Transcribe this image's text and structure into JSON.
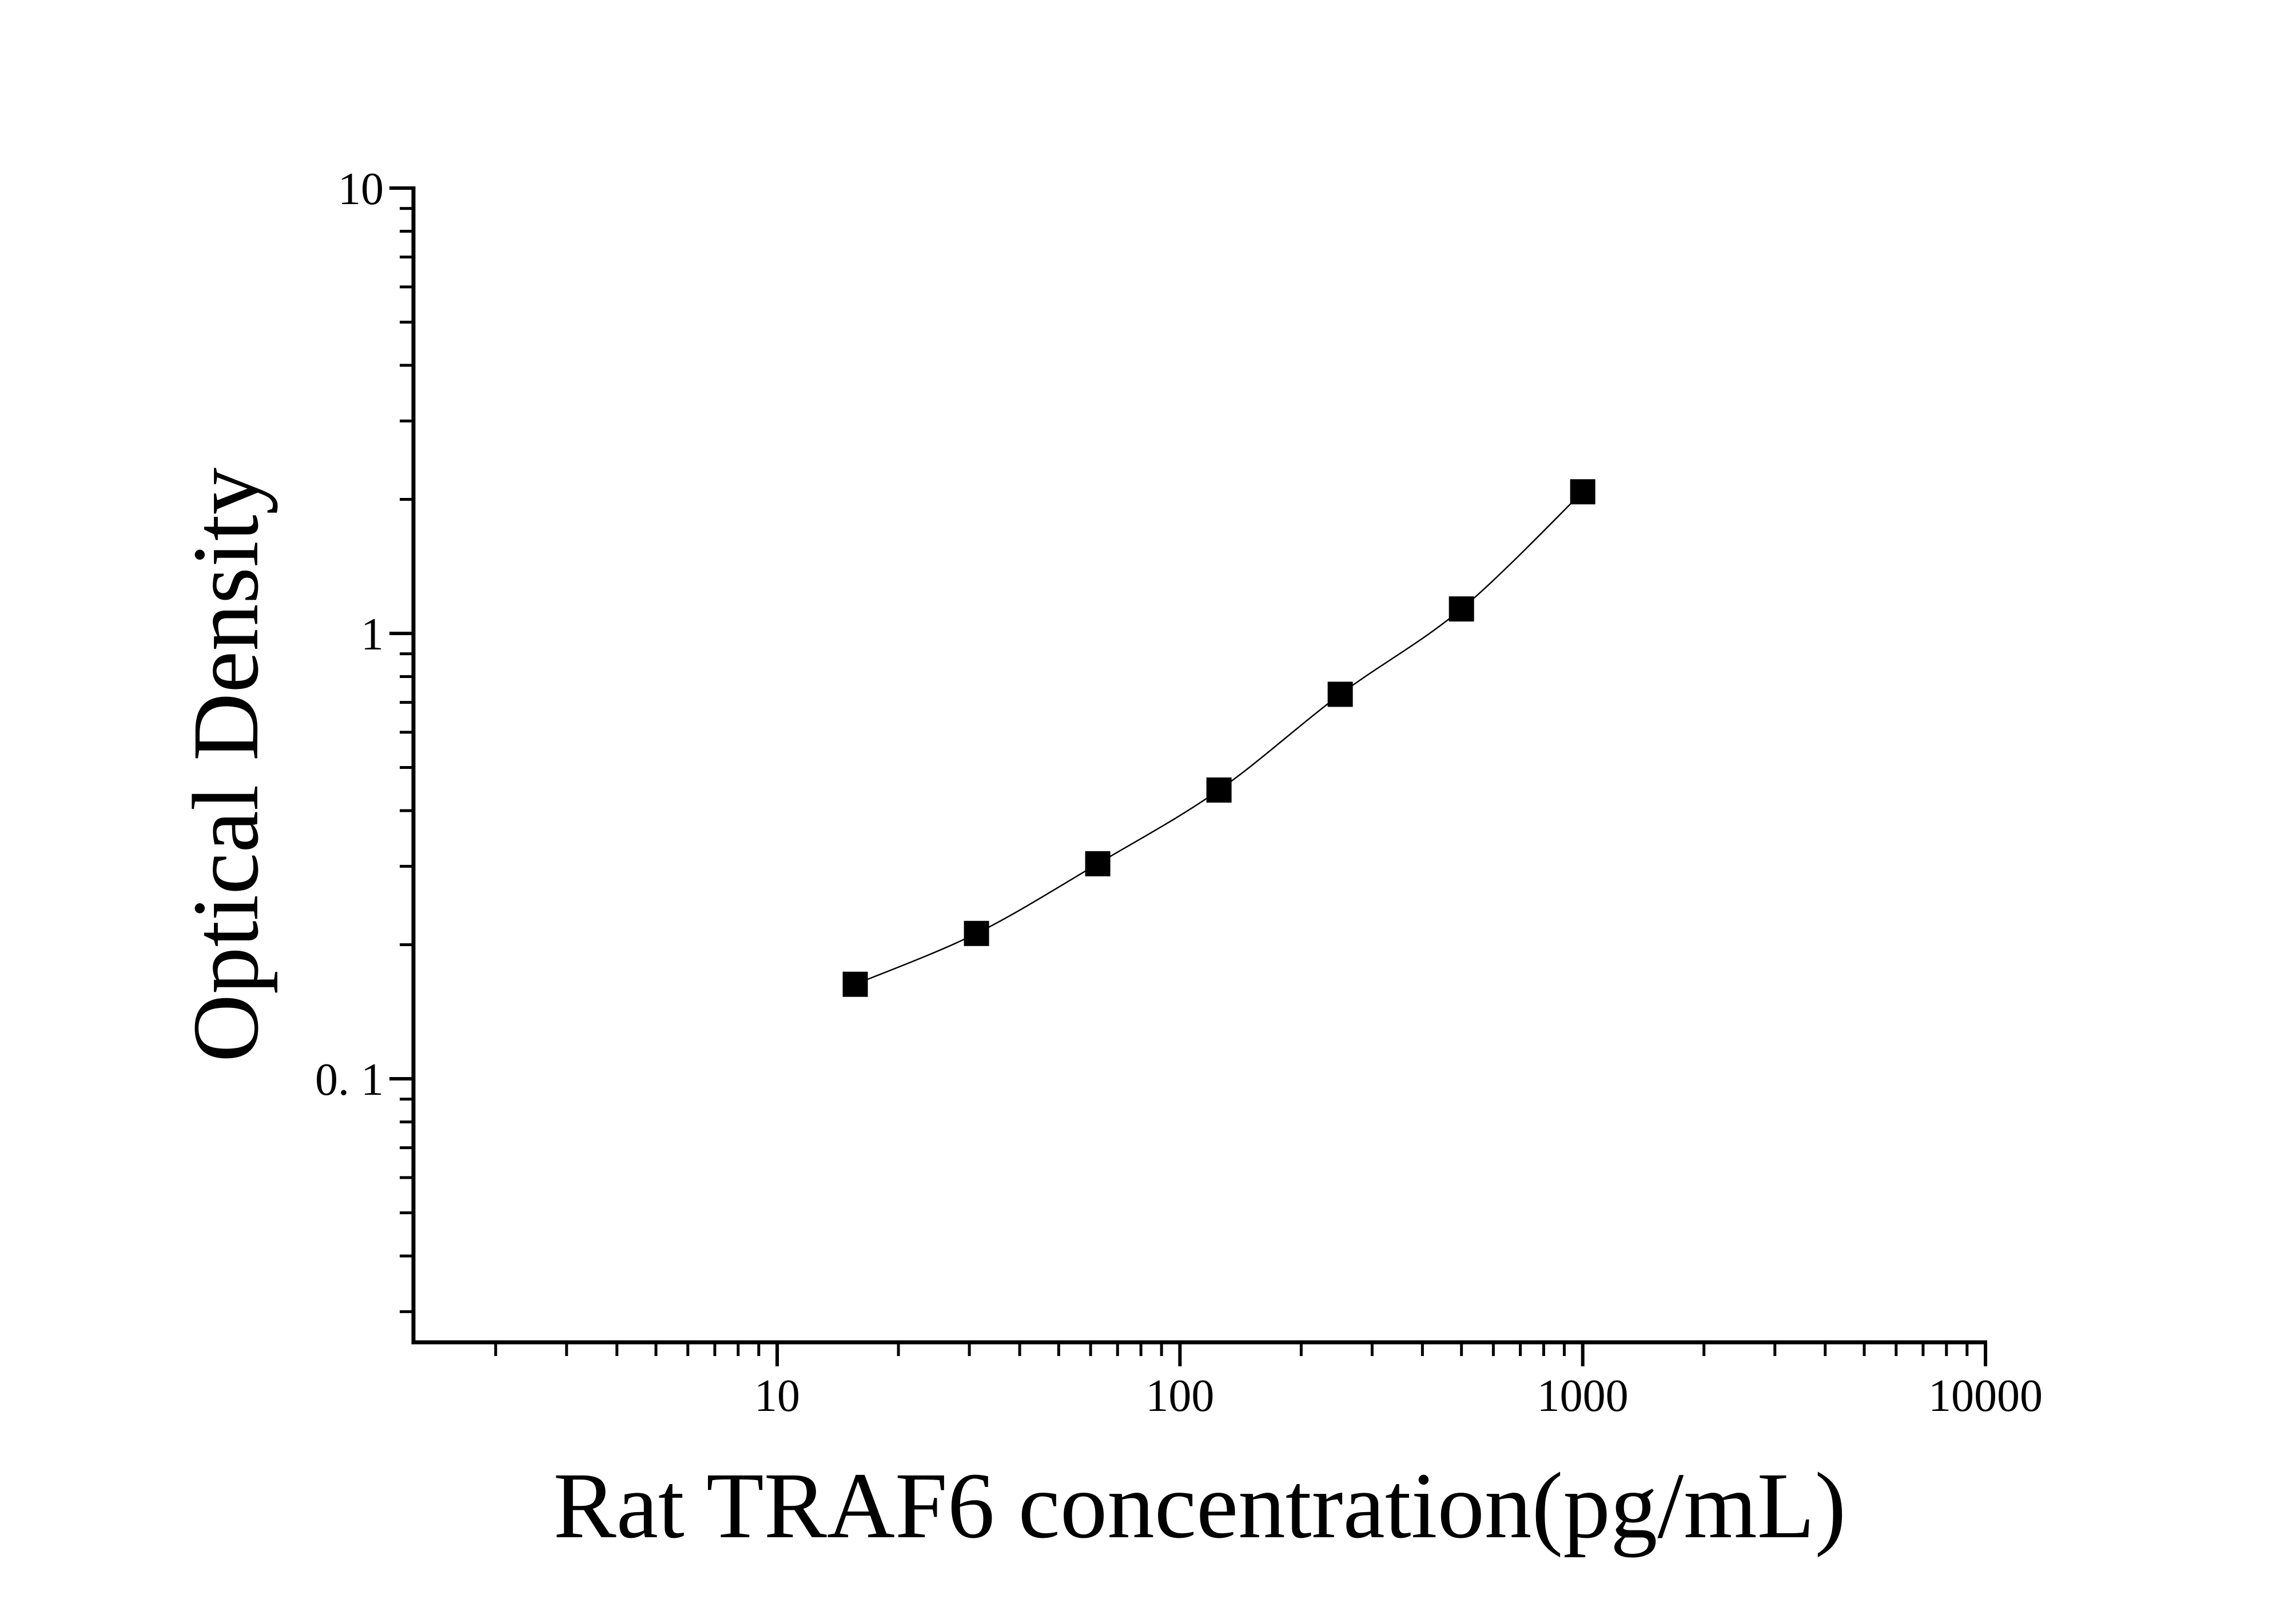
{
  "chart_data": {
    "type": "scatter",
    "x_label": "Rat TRAF6 concentration(pg/mL)",
    "y_label": "Optical Density",
    "x": [
      15.625,
      31.25,
      62.5,
      125,
      250,
      500,
      1000
    ],
    "values": [
      0.163,
      0.212,
      0.304,
      0.445,
      0.73,
      1.135,
      2.08
    ],
    "color": "#000000",
    "xlog": true,
    "ylog": true,
    "xlim": [
      1.25,
      10000
    ],
    "ylim": [
      0.0256,
      10
    ],
    "xticks": [
      10,
      100,
      1000,
      10000
    ],
    "yticks": [
      {
        "value": 0.1,
        "label": "0. 1"
      },
      1,
      10
    ],
    "minor_ticks": true,
    "fit_curve": true
  }
}
